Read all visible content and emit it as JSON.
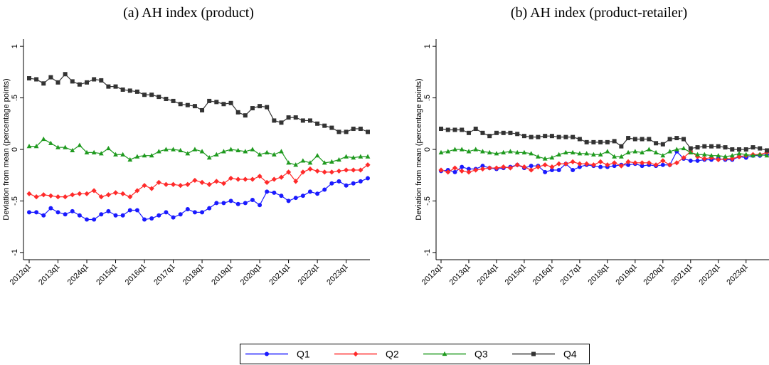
{
  "chart_data": [
    {
      "type": "line",
      "title": "(a) AH index (product)",
      "y_label": "Deviation from mean (percentage points)",
      "categories": [
        "2012q1",
        null,
        null,
        null,
        "2013q1",
        null,
        null,
        null,
        "2024q1",
        null,
        null,
        null,
        "2015q1",
        null,
        null,
        null,
        "2016q1",
        null,
        null,
        null,
        "2017q1",
        null,
        null,
        null,
        "2018q1",
        null,
        null,
        null,
        "2019q1",
        null,
        null,
        null,
        "2020q1",
        null,
        null,
        null,
        "2021q1",
        null,
        null,
        null,
        "2022q1",
        null,
        null,
        null,
        "2023q1",
        null,
        null,
        null
      ],
      "ylim": [
        -1.07,
        1.07
      ],
      "yticks": [
        -1,
        {
          "value": -0.5,
          "label": "-.5"
        },
        0,
        {
          "value": 0.5,
          "label": ".5"
        },
        1
      ],
      "grid": false,
      "series": [
        {
          "name": "Q1",
          "color": "#1a1aff",
          "marker": "circle",
          "values": [
            -0.61,
            -0.61,
            -0.64,
            -0.57,
            -0.61,
            -0.63,
            -0.6,
            -0.64,
            -0.68,
            -0.68,
            -0.63,
            -0.6,
            -0.64,
            -0.64,
            -0.59,
            -0.59,
            -0.68,
            -0.67,
            -0.64,
            -0.61,
            -0.66,
            -0.63,
            -0.58,
            -0.61,
            -0.61,
            -0.57,
            -0.52,
            -0.52,
            -0.5,
            -0.53,
            -0.52,
            -0.49,
            -0.54,
            -0.41,
            -0.42,
            -0.45,
            -0.5,
            -0.47,
            -0.45,
            -0.41,
            -0.43,
            -0.39,
            -0.33,
            -0.31,
            -0.35,
            -0.33,
            -0.31,
            -0.28
          ]
        },
        {
          "name": "Q2",
          "color": "#ff2a2a",
          "marker": "diamond",
          "values": [
            -0.43,
            -0.46,
            -0.44,
            -0.45,
            -0.46,
            -0.46,
            -0.44,
            -0.43,
            -0.43,
            -0.4,
            -0.46,
            -0.44,
            -0.42,
            -0.43,
            -0.46,
            -0.4,
            -0.35,
            -0.38,
            -0.32,
            -0.34,
            -0.34,
            -0.35,
            -0.34,
            -0.3,
            -0.32,
            -0.34,
            -0.31,
            -0.33,
            -0.28,
            -0.29,
            -0.29,
            -0.29,
            -0.26,
            -0.32,
            -0.29,
            -0.27,
            -0.22,
            -0.31,
            -0.22,
            -0.19,
            -0.21,
            -0.22,
            -0.22,
            -0.21,
            -0.2,
            -0.2,
            -0.2,
            -0.15
          ]
        },
        {
          "name": "Q3",
          "color": "#1f9a1f",
          "marker": "triangle",
          "values": [
            0.03,
            0.03,
            0.1,
            0.06,
            0.02,
            0.02,
            -0.01,
            0.04,
            -0.03,
            -0.03,
            -0.04,
            0.01,
            -0.05,
            -0.05,
            -0.1,
            -0.07,
            -0.06,
            -0.06,
            -0.02,
            0,
            0,
            -0.01,
            -0.04,
            0,
            -0.02,
            -0.08,
            -0.05,
            -0.02,
            0,
            -0.01,
            -0.02,
            0,
            -0.05,
            -0.03,
            -0.05,
            -0.02,
            -0.13,
            -0.15,
            -0.11,
            -0.13,
            -0.06,
            -0.13,
            -0.12,
            -0.1,
            -0.07,
            -0.08,
            -0.07,
            -0.07
          ]
        },
        {
          "name": "Q4",
          "color": "#333333",
          "marker": "square",
          "values": [
            0.69,
            0.68,
            0.64,
            0.7,
            0.65,
            0.73,
            0.66,
            0.63,
            0.65,
            0.68,
            0.67,
            0.61,
            0.61,
            0.58,
            0.57,
            0.56,
            0.53,
            0.53,
            0.51,
            0.49,
            0.47,
            0.44,
            0.43,
            0.42,
            0.38,
            0.47,
            0.46,
            0.44,
            0.45,
            0.36,
            0.33,
            0.4,
            0.42,
            0.41,
            0.28,
            0.26,
            0.31,
            0.31,
            0.28,
            0.28,
            0.25,
            0.23,
            0.21,
            0.17,
            0.17,
            0.2,
            0.2,
            0.17
          ]
        }
      ]
    },
    {
      "type": "line",
      "title": "(b) AH index (product-retailer)",
      "y_label": "Deviation from mean (percentage points)",
      "categories": [
        "2012q1",
        null,
        null,
        null,
        "2013q1",
        null,
        null,
        null,
        "2024q1",
        null,
        null,
        null,
        "2015q1",
        null,
        null,
        null,
        "2016q1",
        null,
        null,
        null,
        "2017q1",
        null,
        null,
        null,
        "2018q1",
        null,
        null,
        null,
        "2019q1",
        null,
        null,
        null,
        "2020q1",
        null,
        null,
        null,
        "2021q1",
        null,
        null,
        null,
        "2022q1",
        null,
        null,
        null,
        "2023q1",
        null,
        null,
        null
      ],
      "ylim": [
        -1.07,
        1.07
      ],
      "yticks": [
        -1,
        {
          "value": -0.5,
          "label": "-.5"
        },
        0,
        {
          "value": 0.5,
          "label": ".5"
        },
        1
      ],
      "grid": false,
      "series": [
        {
          "color": "#1a1aff",
          "marker": "circle",
          "values": [
            -0.21,
            -0.2,
            -0.22,
            -0.17,
            -0.19,
            -0.19,
            -0.16,
            -0.18,
            -0.19,
            -0.18,
            -0.17,
            -0.15,
            -0.18,
            -0.16,
            -0.16,
            -0.22,
            -0.2,
            -0.2,
            -0.14,
            -0.2,
            -0.17,
            -0.15,
            -0.16,
            -0.17,
            -0.17,
            -0.16,
            -0.15,
            -0.15,
            -0.14,
            -0.16,
            -0.15,
            -0.16,
            -0.15,
            -0.15,
            -0.02,
            -0.09,
            -0.11,
            -0.11,
            -0.1,
            -0.1,
            -0.09,
            -0.1,
            -0.1,
            -0.07,
            -0.08,
            -0.06,
            -0.06,
            -0.05
          ]
        },
        {
          "color": "#ff2a2a",
          "marker": "diamond",
          "values": [
            -0.2,
            -0.22,
            -0.18,
            -0.21,
            -0.22,
            -0.2,
            -0.19,
            -0.18,
            -0.18,
            -0.17,
            -0.18,
            -0.15,
            -0.17,
            -0.2,
            -0.17,
            -0.15,
            -0.17,
            -0.14,
            -0.14,
            -0.12,
            -0.14,
            -0.14,
            -0.15,
            -0.12,
            -0.15,
            -0.13,
            -0.16,
            -0.12,
            -0.13,
            -0.13,
            -0.13,
            -0.15,
            -0.11,
            -0.15,
            -0.13,
            -0.08,
            -0.02,
            -0.07,
            -0.09,
            -0.08,
            -0.1,
            -0.09,
            -0.09,
            -0.07,
            -0.06,
            -0.05,
            -0.05,
            -0.03
          ]
        },
        {
          "color": "#1f9a1f",
          "marker": "triangle",
          "values": [
            -0.03,
            -0.02,
            0,
            0,
            -0.02,
            0,
            -0.02,
            -0.03,
            -0.04,
            -0.03,
            -0.02,
            -0.03,
            -0.03,
            -0.04,
            -0.07,
            -0.09,
            -0.08,
            -0.05,
            -0.03,
            -0.03,
            -0.04,
            -0.04,
            -0.05,
            -0.05,
            -0.02,
            -0.07,
            -0.07,
            -0.03,
            -0.02,
            -0.03,
            0,
            -0.03,
            -0.06,
            -0.02,
            0,
            0.01,
            -0.03,
            -0.05,
            -0.05,
            -0.06,
            -0.06,
            -0.07,
            -0.06,
            -0.04,
            -0.05,
            -0.06,
            -0.05,
            -0.06
          ]
        },
        {
          "color": "#333333",
          "marker": "square",
          "values": [
            0.2,
            0.19,
            0.19,
            0.19,
            0.16,
            0.2,
            0.16,
            0.13,
            0.16,
            0.16,
            0.16,
            0.15,
            0.13,
            0.12,
            0.12,
            0.13,
            0.13,
            0.12,
            0.12,
            0.12,
            0.1,
            0.07,
            0.07,
            0.07,
            0.07,
            0.08,
            0.03,
            0.11,
            0.1,
            0.1,
            0.1,
            0.06,
            0.05,
            0.1,
            0.11,
            0.1,
            0.01,
            0.02,
            0.03,
            0.03,
            0.03,
            0.02,
            0,
            0,
            0,
            0.02,
            0.01,
            -0.01
          ]
        }
      ]
    }
  ]
}
